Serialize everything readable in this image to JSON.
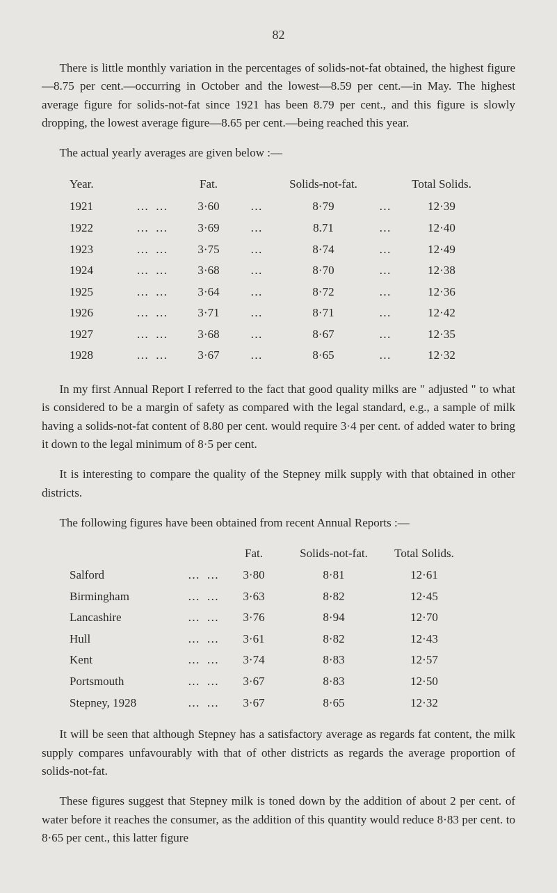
{
  "page_number": "82",
  "para1": "There is little monthly variation in the percentages of solids-not-fat obtained, the highest figure—8.75 per cent.—occurring in October and the lowest—8.59 per cent.—in May. The highest average figure for solids-not-fat since 1921 has been 8.79 per cent., and this figure is slowly dropping, the lowest average figure—8.65 per cent.—being reached this year.",
  "para2": "The actual yearly averages are given below :—",
  "table1": {
    "headers": {
      "year": "Year.",
      "fat": "Fat.",
      "snf": "Solids-not-fat.",
      "total": "Total Solids."
    },
    "rows": [
      {
        "year": "1921",
        "fat": "3·60",
        "snf": "8·79",
        "total": "12·39"
      },
      {
        "year": "1922",
        "fat": "3·69",
        "snf": "8.71",
        "total": "12·40"
      },
      {
        "year": "1923",
        "fat": "3·75",
        "snf": "8·74",
        "total": "12·49"
      },
      {
        "year": "1924",
        "fat": "3·68",
        "snf": "8·70",
        "total": "12·38"
      },
      {
        "year": "1925",
        "fat": "3·64",
        "snf": "8·72",
        "total": "12·36"
      },
      {
        "year": "1926",
        "fat": "3·71",
        "snf": "8·71",
        "total": "12·42"
      },
      {
        "year": "1927",
        "fat": "3·68",
        "snf": "8·67",
        "total": "12·35"
      },
      {
        "year": "1928",
        "fat": "3·67",
        "snf": "8·65",
        "total": "12·32"
      }
    ]
  },
  "para3": "In my first Annual Report I referred to the fact that good quality milks are \" adjusted \" to what is considered to be a margin of safety as compared with the legal standard, e.g., a sample of milk having a solids-not-fat content of 8.80 per cent. would require 3·4 per cent. of added water to bring it down to the legal minimum of 8·5 per cent.",
  "para4": "It is interesting to compare the quality of the Stepney milk supply with that obtained in other districts.",
  "para5": "The following figures have been obtained from recent Annual Reports :—",
  "table2": {
    "headers": {
      "fat": "Fat.",
      "snf": "Solids-not-fat.",
      "total": "Total Solids."
    },
    "rows": [
      {
        "name": "Salford",
        "fat": "3·80",
        "snf": "8·81",
        "total": "12·61"
      },
      {
        "name": "Birmingham",
        "fat": "3·63",
        "snf": "8·82",
        "total": "12·45"
      },
      {
        "name": "Lancashire",
        "fat": "3·76",
        "snf": "8·94",
        "total": "12·70"
      },
      {
        "name": "Hull",
        "fat": "3·61",
        "snf": "8·82",
        "total": "12·43"
      },
      {
        "name": "Kent",
        "fat": "3·74",
        "snf": "8·83",
        "total": "12·57"
      },
      {
        "name": "Portsmouth",
        "fat": "3·67",
        "snf": "8·83",
        "total": "12·50"
      },
      {
        "name": "Stepney, 1928",
        "fat": "3·67",
        "snf": "8·65",
        "total": "12·32"
      }
    ]
  },
  "para6": "It will be seen that although Stepney has a satisfactory average as regards fat content, the milk supply compares unfavourably with that of other districts as regards the average proportion of solids-not-fat.",
  "para7": "These figures suggest that Stepney milk is toned down by the addition of about 2 per cent. of water before it reaches the consumer, as the addition of this quantity would reduce 8·83 per cent. to 8·65 per cent., this latter figure",
  "dots": "…   …",
  "dots_short": "…"
}
